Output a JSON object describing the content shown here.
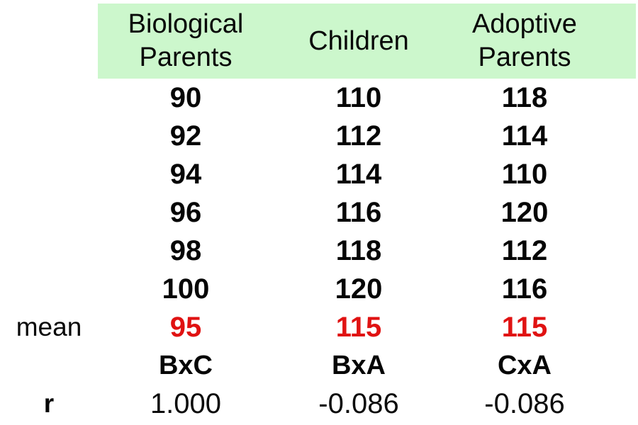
{
  "colors": {
    "header_bg": "#ccf7cc",
    "mean_value_red": "#e01212",
    "text_black": "#0a0a0a"
  },
  "header": {
    "col1_line1": "Biological",
    "col1_line2": "Parents",
    "col2": "Children",
    "col3_line1": "Adoptive",
    "col3_line2": "Parents"
  },
  "rows": [
    [
      "90",
      "110",
      "118"
    ],
    [
      "92",
      "112",
      "114"
    ],
    [
      "94",
      "114",
      "110"
    ],
    [
      "96",
      "116",
      "120"
    ],
    [
      "98",
      "118",
      "112"
    ],
    [
      "100",
      "120",
      "116"
    ]
  ],
  "mean": {
    "label": "mean",
    "bio": "95",
    "child": "115",
    "adopt": "115"
  },
  "pairs": {
    "bio": "BxC",
    "child": "BxA",
    "adopt": "CxA"
  },
  "r": {
    "label": "r",
    "bio": "1.000",
    "child": "-0.086",
    "adopt": "-0.086"
  },
  "chart_data": {
    "type": "table",
    "columns": [
      "Biological Parents",
      "Children",
      "Adoptive Parents"
    ],
    "rows": [
      [
        90,
        110,
        118
      ],
      [
        92,
        112,
        114
      ],
      [
        94,
        114,
        110
      ],
      [
        96,
        116,
        120
      ],
      [
        98,
        118,
        112
      ],
      [
        100,
        120,
        116
      ]
    ],
    "mean": {
      "label": "mean",
      "values": [
        95,
        115,
        115
      ]
    },
    "correlation_row_label": "r",
    "correlation_pairs": [
      "BxC",
      "BxA",
      "CxA"
    ],
    "correlation_values": [
      1.0,
      -0.086,
      -0.086
    ],
    "style": {
      "header_bg": "#ccf7cc",
      "mean_color": "#e01212",
      "grid": false
    }
  }
}
